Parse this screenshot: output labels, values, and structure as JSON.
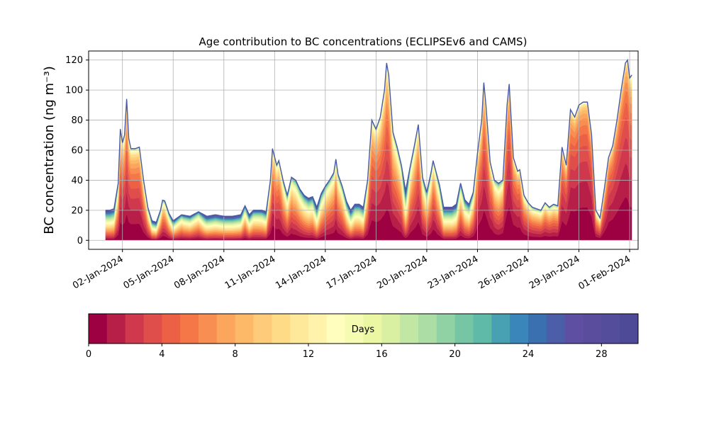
{
  "chart_data": {
    "type": "area",
    "title": "Age contribution to BC concentrations (ECLIPSEv6 and CAMS)",
    "ylabel": "BC concentration (ng m⁻³)",
    "xlabel": "",
    "xlim": [
      "2023-12-31T00:00",
      "2024-02-01T12:00"
    ],
    "ylim": [
      -6,
      126
    ],
    "grid": true,
    "stacking": "stacked by age, youngest (0 days) at bottom, oldest (30 days) on top",
    "yticks": [
      0,
      20,
      40,
      60,
      80,
      100,
      120
    ],
    "xticks": [
      "02-Jan-2024",
      "05-Jan-2024",
      "08-Jan-2024",
      "11-Jan-2024",
      "14-Jan-2024",
      "17-Jan-2024",
      "20-Jan-2024",
      "23-Jan-2024",
      "26-Jan-2024",
      "29-Jan-2024",
      "01-Feb-2024"
    ],
    "total_series": {
      "name": "",
      "points": [
        [
          "2024-01-01T00:00",
          20
        ],
        [
          "2024-01-01T06:00",
          20
        ],
        [
          "2024-01-01T12:00",
          21
        ],
        [
          "2024-01-01T18:00",
          38
        ],
        [
          "2024-01-01T21:00",
          74
        ],
        [
          "2024-01-02T00:00",
          65
        ],
        [
          "2024-01-02T03:00",
          70
        ],
        [
          "2024-01-02T06:00",
          94
        ],
        [
          "2024-01-02T08:00",
          70
        ],
        [
          "2024-01-02T12:00",
          61
        ],
        [
          "2024-01-02T18:00",
          61
        ],
        [
          "2024-01-03T00:00",
          62
        ],
        [
          "2024-01-03T06:00",
          40
        ],
        [
          "2024-01-03T12:00",
          22
        ],
        [
          "2024-01-03T18:00",
          13
        ],
        [
          "2024-01-04T00:00",
          12
        ],
        [
          "2024-01-04T06:00",
          20
        ],
        [
          "2024-01-04T10:00",
          29
        ],
        [
          "2024-01-04T18:00",
          18
        ],
        [
          "2024-01-05T00:00",
          13
        ],
        [
          "2024-01-05T12:00",
          17
        ],
        [
          "2024-01-06T00:00",
          16
        ],
        [
          "2024-01-06T12:00",
          19
        ],
        [
          "2024-01-07T00:00",
          16
        ],
        [
          "2024-01-07T12:00",
          17
        ],
        [
          "2024-01-08T00:00",
          16
        ],
        [
          "2024-01-08T12:00",
          16
        ],
        [
          "2024-01-09T00:00",
          17
        ],
        [
          "2024-01-09T06:00",
          23
        ],
        [
          "2024-01-09T12:00",
          17
        ],
        [
          "2024-01-09T18:00",
          20
        ],
        [
          "2024-01-10T00:00",
          20
        ],
        [
          "2024-01-10T06:00",
          20
        ],
        [
          "2024-01-10T12:00",
          19
        ],
        [
          "2024-01-10T18:00",
          40
        ],
        [
          "2024-01-10T21:00",
          61
        ],
        [
          "2024-01-11T03:00",
          50
        ],
        [
          "2024-01-11T06:00",
          53
        ],
        [
          "2024-01-11T12:00",
          40
        ],
        [
          "2024-01-11T18:00",
          30
        ],
        [
          "2024-01-12T00:00",
          42
        ],
        [
          "2024-01-12T06:00",
          40
        ],
        [
          "2024-01-12T12:00",
          34
        ],
        [
          "2024-01-12T18:00",
          30
        ],
        [
          "2024-01-13T00:00",
          28
        ],
        [
          "2024-01-13T06:00",
          29
        ],
        [
          "2024-01-13T12:00",
          22
        ],
        [
          "2024-01-13T18:00",
          31
        ],
        [
          "2024-01-14T00:00",
          36
        ],
        [
          "2024-01-14T06:00",
          40
        ],
        [
          "2024-01-14T12:00",
          45
        ],
        [
          "2024-01-14T15:00",
          54
        ],
        [
          "2024-01-14T18:00",
          44
        ],
        [
          "2024-01-15T00:00",
          36
        ],
        [
          "2024-01-15T06:00",
          26
        ],
        [
          "2024-01-15T12:00",
          20
        ],
        [
          "2024-01-15T18:00",
          24
        ],
        [
          "2024-01-16T00:00",
          24
        ],
        [
          "2024-01-16T06:00",
          22
        ],
        [
          "2024-01-16T12:00",
          40
        ],
        [
          "2024-01-16T18:00",
          80
        ],
        [
          "2024-01-17T00:00",
          74
        ],
        [
          "2024-01-17T06:00",
          82
        ],
        [
          "2024-01-17T12:00",
          100
        ],
        [
          "2024-01-17T15:00",
          118
        ],
        [
          "2024-01-17T18:00",
          110
        ],
        [
          "2024-01-18T00:00",
          72
        ],
        [
          "2024-01-18T06:00",
          62
        ],
        [
          "2024-01-18T12:00",
          50
        ],
        [
          "2024-01-18T18:00",
          33
        ],
        [
          "2024-01-19T00:00",
          48
        ],
        [
          "2024-01-19T06:00",
          62
        ],
        [
          "2024-01-19T12:00",
          77
        ],
        [
          "2024-01-19T18:00",
          42
        ],
        [
          "2024-01-20T00:00",
          32
        ],
        [
          "2024-01-20T06:00",
          45
        ],
        [
          "2024-01-20T09:00",
          53
        ],
        [
          "2024-01-20T18:00",
          37
        ],
        [
          "2024-01-21T00:00",
          22
        ],
        [
          "2024-01-21T12:00",
          22
        ],
        [
          "2024-01-21T18:00",
          24
        ],
        [
          "2024-01-22T00:00",
          38
        ],
        [
          "2024-01-22T06:00",
          27
        ],
        [
          "2024-01-22T12:00",
          24
        ],
        [
          "2024-01-22T18:00",
          32
        ],
        [
          "2024-01-23T00:00",
          58
        ],
        [
          "2024-01-23T06:00",
          80
        ],
        [
          "2024-01-23T09:00",
          105
        ],
        [
          "2024-01-23T12:00",
          90
        ],
        [
          "2024-01-23T18:00",
          52
        ],
        [
          "2024-01-24T00:00",
          40
        ],
        [
          "2024-01-24T06:00",
          38
        ],
        [
          "2024-01-24T12:00",
          40
        ],
        [
          "2024-01-24T18:00",
          90
        ],
        [
          "2024-01-24T21:00",
          104
        ],
        [
          "2024-01-25T03:00",
          55
        ],
        [
          "2024-01-25T09:00",
          46
        ],
        [
          "2024-01-25T12:00",
          47
        ],
        [
          "2024-01-25T18:00",
          30
        ],
        [
          "2024-01-26T00:00",
          25
        ],
        [
          "2024-01-26T06:00",
          22
        ],
        [
          "2024-01-26T12:00",
          21
        ],
        [
          "2024-01-26T18:00",
          20
        ],
        [
          "2024-01-27T00:00",
          25
        ],
        [
          "2024-01-27T06:00",
          22
        ],
        [
          "2024-01-27T12:00",
          24
        ],
        [
          "2024-01-27T18:00",
          23
        ],
        [
          "2024-01-28T00:00",
          62
        ],
        [
          "2024-01-28T06:00",
          50
        ],
        [
          "2024-01-28T12:00",
          87
        ],
        [
          "2024-01-28T18:00",
          82
        ],
        [
          "2024-01-29T00:00",
          90
        ],
        [
          "2024-01-29T06:00",
          92
        ],
        [
          "2024-01-29T12:00",
          92
        ],
        [
          "2024-01-29T18:00",
          70
        ],
        [
          "2024-01-30T00:00",
          20
        ],
        [
          "2024-01-30T06:00",
          15
        ],
        [
          "2024-01-30T12:00",
          34
        ],
        [
          "2024-01-30T18:00",
          55
        ],
        [
          "2024-01-31T00:00",
          63
        ],
        [
          "2024-01-31T06:00",
          80
        ],
        [
          "2024-01-31T12:00",
          100
        ],
        [
          "2024-01-31T18:00",
          118
        ],
        [
          "2024-01-31T21:00",
          120
        ],
        [
          "2024-02-01T00:00",
          108
        ],
        [
          "2024-02-01T03:00",
          110
        ]
      ]
    },
    "colorbar": {
      "label": "Days",
      "range": [
        0,
        30
      ],
      "ticks": [
        0,
        4,
        8,
        12,
        16,
        20,
        24,
        28
      ],
      "colors": [
        "#9e0142",
        "#b81f48",
        "#cf384d",
        "#df4e4b",
        "#ec6145",
        "#f57748",
        "#f98e52",
        "#fca55d",
        "#fdb868",
        "#fecb7a",
        "#fedb87",
        "#fee89a",
        "#fff3ac",
        "#fffebe",
        "#f6fbb2",
        "#ebf7a3",
        "#d9f0a2",
        "#c2e7a4",
        "#abdda4",
        "#91d2a4",
        "#76c6a5",
        "#5fbaa8",
        "#48a0b3",
        "#3a86bb",
        "#3a6fb0",
        "#4c5ea8",
        "#5e4fa2",
        "#5a4d9e",
        "#534d9c",
        "#4e4a97"
      ]
    }
  }
}
